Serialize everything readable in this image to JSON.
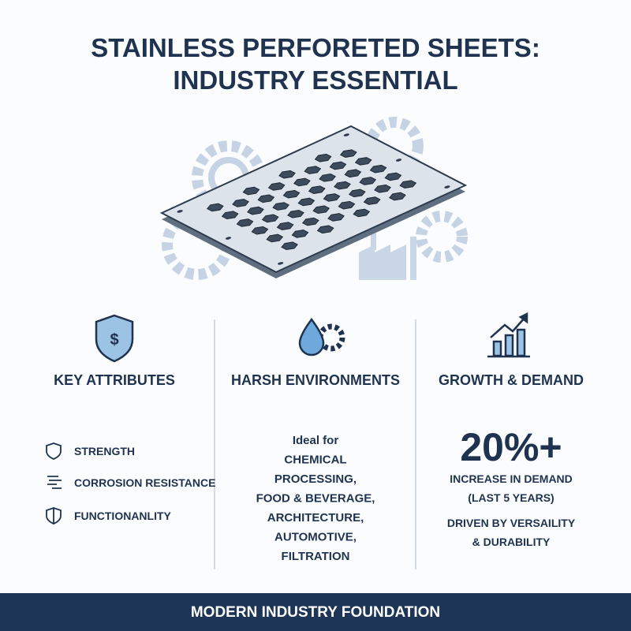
{
  "header": {
    "title_lines": [
      "STAINLESS PERFORETED SHEETS:",
      "INDUSTRY ESSENTIAL"
    ]
  },
  "columns": [
    {
      "heading": "KEY ATTRIBUTES",
      "items": [
        "STRENGTH",
        "CORROSION RESISTANCE",
        "FUNCTIONANLITY"
      ]
    },
    {
      "heading": "HARSH ENVIRONMENTS",
      "lines": [
        "Ideal for",
        "CHEMICAL",
        "PROCESSING,",
        "FOOD & BEVERAGE,",
        "ARCHITECTURE,",
        "AUTOMOTIVE,",
        "FILTRATION"
      ]
    },
    {
      "heading": "GROWTH & DEMAND",
      "stat": "20%+",
      "lines": [
        "INCREASE IN DEMAND",
        "(LAST 5 YEARS)"
      ],
      "note_lines": [
        "DRIVEN BY VERSAILITY",
        "& DURABILITY"
      ]
    }
  ],
  "footer": {
    "text": "MODERN INDUSTRY FOUNDATION"
  }
}
